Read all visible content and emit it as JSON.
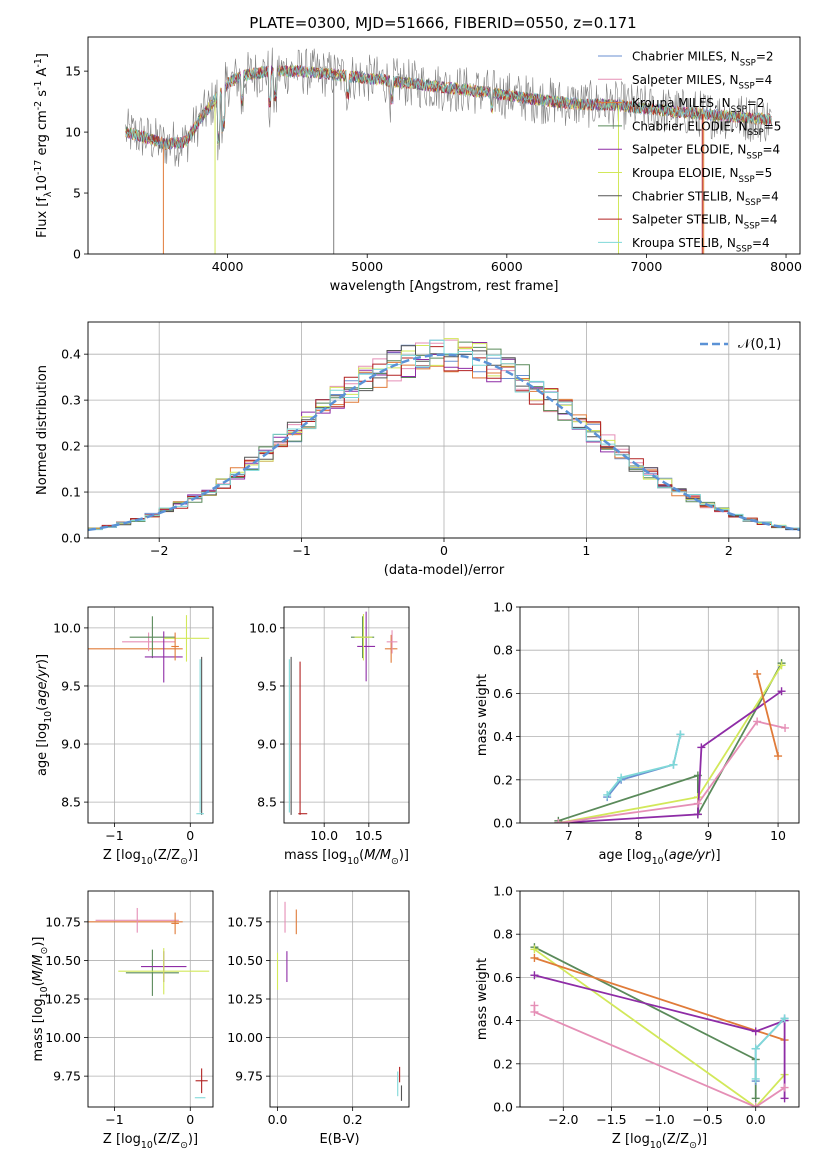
{
  "figure": {
    "title": "PLATE=0300, MJD=51666, FIBERID=0550, z=0.171"
  },
  "colors": {
    "chabrier_miles": "#6a8fd0",
    "salpeter_miles": "#e58fb6",
    "kroupa_miles": "#e07b39",
    "chabrier_elodie": "#5a8a5a",
    "salpeter_elodie": "#8e2ca6",
    "kroupa_elodie": "#d2e85a",
    "chabrier_stelib": "#555555",
    "salpeter_stelib": "#b22222",
    "kroupa_stelib": "#7fd8d8",
    "normal": "#5b92d6",
    "data": "#808080"
  },
  "chart_data": [
    {
      "id": "spectrum",
      "type": "line",
      "xlabel": "wavelength [Angstrom, rest frame]",
      "ylabel": "Flux [f$_\\lambda$10$^{-17}$ erg cm$^{-2}$ s$^{-1}$ A$^{-1}$]",
      "xlim": [
        3000,
        8100
      ],
      "ylim": [
        0,
        17.8
      ],
      "xticks": [
        4000,
        5000,
        6000,
        7000,
        8000
      ],
      "yticks": [
        0,
        5,
        10,
        15
      ],
      "legend_position": "right",
      "series": [
        {
          "name": "Chabrier MILES, N$_{SSP}$=2",
          "key": "chabrier_miles"
        },
        {
          "name": "Salpeter MILES, N$_{SSP}$=4",
          "key": "salpeter_miles"
        },
        {
          "name": "Kroupa MILES, N$_{SSP}$=2",
          "key": "kroupa_miles"
        },
        {
          "name": "Chabrier ELODIE, N$_{SSP}$=5",
          "key": "chabrier_elodie"
        },
        {
          "name": "Salpeter ELODIE, N$_{SSP}$=4",
          "key": "salpeter_elodie"
        },
        {
          "name": "Kroupa ELODIE, N$_{SSP}$=5",
          "key": "kroupa_elodie"
        },
        {
          "name": "Chabrier STELIB, N$_{SSP}$=4",
          "key": "chabrier_stelib"
        },
        {
          "name": "Salpeter STELIB, N$_{SSP}$=4",
          "key": "salpeter_stelib"
        },
        {
          "name": "Kroupa STELIB, N$_{SSP}$=4",
          "key": "kroupa_stelib"
        }
      ],
      "continuum": [
        [
          3270,
          10.0
        ],
        [
          3400,
          9.6
        ],
        [
          3550,
          9.0
        ],
        [
          3700,
          9.2
        ],
        [
          3800,
          11.0
        ],
        [
          3900,
          12.5
        ],
        [
          4000,
          14.0
        ],
        [
          4100,
          14.6
        ],
        [
          4300,
          15.0
        ],
        [
          4500,
          15.0
        ],
        [
          4700,
          14.8
        ],
        [
          5000,
          14.4
        ],
        [
          5300,
          14.0
        ],
        [
          5600,
          13.6
        ],
        [
          5900,
          13.2
        ],
        [
          6200,
          12.7
        ],
        [
          6500,
          12.3
        ],
        [
          6800,
          12.2
        ],
        [
          7000,
          11.9
        ],
        [
          7300,
          11.6
        ],
        [
          7600,
          11.3
        ],
        [
          7900,
          11.0
        ]
      ]
    },
    {
      "id": "residuals",
      "type": "line",
      "xlabel": "(data-model)/error",
      "ylabel": "Normed distribution",
      "xlim": [
        -2.5,
        2.5
      ],
      "ylim": [
        0,
        0.47
      ],
      "xticks": [
        -2,
        -1,
        0,
        1,
        2
      ],
      "yticks": [
        0.0,
        0.1,
        0.2,
        0.3,
        0.4
      ],
      "legend_position": "top-right",
      "legend": "$\\mathcal{N}(0,1)$",
      "normal_mean": 0,
      "normal_sigma": 1
    },
    {
      "id": "age_vs_Z",
      "type": "scatter",
      "xlabel": "Z [log$_{10}$(Z/Z$_\\odot$)]",
      "ylabel": "age  [log$_{10}$($age/yr$)]",
      "xlim": [
        -1.35,
        0.3
      ],
      "ylim": [
        8.32,
        10.18
      ],
      "xticks": [
        -1,
        0
      ],
      "yticks": [
        8.5,
        9.0,
        9.5,
        10.0
      ],
      "points": [
        {
          "key": "kroupa_miles",
          "x": -0.75,
          "y": 9.82,
          "xerr": 0.65,
          "yerr": 0.0
        },
        {
          "key": "salpeter_miles",
          "x": -0.55,
          "y": 9.88,
          "xerr": 0.35,
          "yerr": 0.08
        },
        {
          "key": "chabrier_elodie",
          "x": -0.5,
          "y": 9.92,
          "xerr": 0.3,
          "yerr": 0.18
        },
        {
          "key": "salpeter_elodie",
          "x": -0.35,
          "y": 9.75,
          "xerr": 0.25,
          "yerr": 0.22
        },
        {
          "key": "kroupa_elodie",
          "x": -0.05,
          "y": 9.91,
          "xerr": 0.3,
          "yerr": 0.2
        },
        {
          "key": "kroupa_miles",
          "x": -0.2,
          "y": 9.84,
          "xerr": 0.05,
          "yerr": 0.12
        },
        {
          "key": "chabrier_stelib",
          "x": 0.15,
          "y": 9.07,
          "xerr": 0.0,
          "yerr": 0.68
        },
        {
          "key": "kroupa_stelib",
          "x": 0.13,
          "y": 9.07,
          "xerr": 0.0,
          "yerr": 0.66
        },
        {
          "key": "kroupa_stelib",
          "x": 0.13,
          "y": 8.4,
          "xerr": 0.05,
          "yerr": 0.0
        }
      ]
    },
    {
      "id": "age_vs_mass",
      "type": "scatter",
      "xlabel": "mass [log$_{10}$($M/M_\\odot$)]",
      "ylabel": "",
      "xlim": [
        9.55,
        10.95
      ],
      "ylim": [
        8.32,
        10.18
      ],
      "xticks": [
        10.0,
        10.5
      ],
      "xticklabels": [
        "10.0",
        "10.5"
      ],
      "yticks": [
        8.5,
        9.0,
        9.5,
        10.0
      ],
      "points": [
        {
          "key": "chabrier_elodie",
          "x": 10.43,
          "y": 9.92,
          "xerr": 0.13,
          "yerr": 0.18
        },
        {
          "key": "salpeter_elodie",
          "x": 10.47,
          "y": 9.84,
          "xerr": 0.1,
          "yerr": 0.3
        },
        {
          "key": "kroupa_elodie",
          "x": 10.44,
          "y": 9.92,
          "xerr": 0.1,
          "yerr": 0.2
        },
        {
          "key": "kroupa_miles",
          "x": 10.75,
          "y": 9.82,
          "xerr": 0.07,
          "yerr": 0.12
        },
        {
          "key": "salpeter_miles",
          "x": 10.76,
          "y": 9.88,
          "xerr": 0.06,
          "yerr": 0.1
        },
        {
          "key": "chabrier_stelib",
          "x": 9.63,
          "y": 9.07,
          "xerr": 0.0,
          "yerr": 0.68
        },
        {
          "key": "kroupa_stelib",
          "x": 9.61,
          "y": 9.07,
          "xerr": 0.0,
          "yerr": 0.66
        },
        {
          "key": "salpeter_stelib",
          "x": 9.73,
          "y": 9.05,
          "xerr": 0.0,
          "yerr": 0.66
        },
        {
          "key": "salpeter_stelib",
          "x": 9.76,
          "y": 8.4,
          "xerr": 0.05,
          "yerr": 0.0
        }
      ]
    },
    {
      "id": "weight_vs_age",
      "type": "line",
      "xlabel": "age  [log$_{10}$($age/yr$)]",
      "ylabel": "mass weight",
      "xlim": [
        6.3,
        10.3
      ],
      "ylim": [
        0,
        1.0
      ],
      "xticks": [
        7,
        8,
        9,
        10
      ],
      "yticks": [
        0.0,
        0.2,
        0.4,
        0.6,
        0.8,
        1.0
      ],
      "series": [
        {
          "key": "chabrier_miles",
          "x": [
            7.55,
            7.75,
            8.5,
            8.6
          ],
          "y": [
            0.12,
            0.2,
            0.27,
            0.41
          ]
        },
        {
          "key": "kroupa_stelib",
          "x": [
            7.55,
            7.75,
            8.5,
            8.6
          ],
          "y": [
            0.13,
            0.21,
            0.27,
            0.41
          ]
        },
        {
          "key": "chabrier_elodie",
          "x": [
            6.85,
            8.85,
            8.85,
            10.05
          ],
          "y": [
            0.01,
            0.22,
            0.04,
            0.74
          ]
        },
        {
          "key": "kroupa_elodie",
          "x": [
            6.85,
            8.85,
            10.05
          ],
          "y": [
            0.0,
            0.12,
            0.73
          ]
        },
        {
          "key": "salpeter_elodie",
          "x": [
            6.85,
            8.85,
            8.9,
            10.05
          ],
          "y": [
            0.0,
            0.04,
            0.35,
            0.61
          ]
        },
        {
          "key": "salpeter_miles",
          "x": [
            6.85,
            8.85,
            9.7,
            10.1
          ],
          "y": [
            0.0,
            0.09,
            0.47,
            0.44
          ]
        },
        {
          "key": "kroupa_miles",
          "x": [
            9.7,
            10.0
          ],
          "y": [
            0.69,
            0.31
          ]
        }
      ]
    },
    {
      "id": "mass_vs_Z",
      "type": "scatter",
      "xlabel": "Z [log$_{10}$(Z/Z$_\\odot$)]",
      "ylabel": "mass [log$_{10}$($M/M_\\odot$)]",
      "xlim": [
        -1.35,
        0.3
      ],
      "ylim": [
        9.55,
        10.95
      ],
      "xticks": [
        -1,
        0
      ],
      "yticks": [
        9.75,
        10.0,
        10.25,
        10.5,
        10.75
      ],
      "yticklabels": [
        "9.75",
        "10.00",
        "10.25",
        "10.50",
        "10.75"
      ],
      "points": [
        {
          "key": "kroupa_miles",
          "x": -0.75,
          "y": 10.75,
          "xerr": 0.65,
          "yerr": 0.0
        },
        {
          "key": "salpeter_miles",
          "x": -0.7,
          "y": 10.76,
          "xerr": 0.55,
          "yerr": 0.08
        },
        {
          "key": "chabrier_elodie",
          "x": -0.5,
          "y": 10.42,
          "xerr": 0.35,
          "yerr": 0.15
        },
        {
          "key": "salpeter_elodie",
          "x": -0.35,
          "y": 10.46,
          "xerr": 0.3,
          "yerr": 0.1
        },
        {
          "key": "kroupa_elodie",
          "x": -0.35,
          "y": 10.43,
          "xerr": 0.6,
          "yerr": 0.15
        },
        {
          "key": "kroupa_miles",
          "x": -0.2,
          "y": 10.74,
          "xerr": 0.05,
          "yerr": 0.07
        },
        {
          "key": "salpeter_stelib",
          "x": 0.15,
          "y": 9.72,
          "xerr": 0.08,
          "yerr": 0.08
        },
        {
          "key": "kroupa_stelib",
          "x": 0.13,
          "y": 9.61,
          "xerr": 0.07,
          "yerr": 0.0
        }
      ]
    },
    {
      "id": "mass_vs_ebv",
      "type": "scatter",
      "xlabel": "E(B-V)",
      "ylabel": "",
      "xlim": [
        -0.02,
        0.35
      ],
      "ylim": [
        9.55,
        10.95
      ],
      "xticks": [
        0.0,
        0.2
      ],
      "xticklabels": [
        "0.0",
        "0.2"
      ],
      "yticks": [
        9.75,
        10.0,
        10.25,
        10.5,
        10.75
      ],
      "yticklabels": [
        "9.75",
        "10.00",
        "10.25",
        "10.50",
        "10.75"
      ],
      "points": [
        {
          "key": "salpeter_miles",
          "x": 0.02,
          "y": 10.78,
          "xerr": 0.0,
          "yerr": 0.1
        },
        {
          "key": "kroupa_miles",
          "x": 0.05,
          "y": 10.75,
          "xerr": 0.0,
          "yerr": 0.08
        },
        {
          "key": "salpeter_elodie",
          "x": 0.025,
          "y": 10.46,
          "xerr": 0.0,
          "yerr": 0.1
        },
        {
          "key": "kroupa_elodie",
          "x": 0.0,
          "y": 10.43,
          "xerr": 0.0,
          "yerr": 0.12
        },
        {
          "key": "kroupa_stelib",
          "x": 0.32,
          "y": 9.7,
          "xerr": 0.0,
          "yerr": 0.08
        },
        {
          "key": "salpeter_stelib",
          "x": 0.325,
          "y": 9.76,
          "xerr": 0.0,
          "yerr": 0.05
        },
        {
          "key": "chabrier_stelib",
          "x": 0.33,
          "y": 9.64,
          "xerr": 0.0,
          "yerr": 0.05
        }
      ]
    },
    {
      "id": "weight_vs_Z",
      "type": "line",
      "xlabel": "Z [log$_{10}$(Z/Z$_\\odot$)]",
      "ylabel": "mass weight",
      "xlim": [
        -2.45,
        0.45
      ],
      "ylim": [
        0,
        1.0
      ],
      "xticks": [
        -2.0,
        -1.5,
        -1.0,
        -0.5,
        0.0
      ],
      "xticklabels": [
        "-2.0",
        "-1.5",
        "-1.0",
        "-0.5",
        "0.0"
      ],
      "yticks": [
        0.0,
        0.2,
        0.4,
        0.6,
        0.8,
        1.0
      ],
      "series": [
        {
          "key": "chabrier_elodie",
          "x": [
            -2.3,
            0.0,
            0.0
          ],
          "y": [
            0.74,
            0.22,
            0.04
          ]
        },
        {
          "key": "kroupa_elodie",
          "x": [
            -2.3,
            0.0,
            0.3
          ],
          "y": [
            0.73,
            0.0,
            0.15
          ]
        },
        {
          "key": "kroupa_miles",
          "x": [
            -2.3,
            0.3
          ],
          "y": [
            0.69,
            0.31
          ]
        },
        {
          "key": "salpeter_elodie",
          "x": [
            -2.3,
            0.0,
            0.3,
            0.3
          ],
          "y": [
            0.61,
            0.35,
            0.4,
            0.04
          ]
        },
        {
          "key": "salpeter_miles",
          "x": [
            -2.3,
            -2.3,
            0.0,
            0.3
          ],
          "y": [
            0.47,
            0.44,
            0.0,
            0.09
          ]
        },
        {
          "key": "chabrier_miles",
          "x": [
            0.0,
            0.0,
            0.3
          ],
          "y": [
            0.12,
            0.27,
            0.41
          ]
        },
        {
          "key": "kroupa_stelib",
          "x": [
            0.0,
            0.0,
            0.3
          ],
          "y": [
            0.13,
            0.27,
            0.41
          ]
        }
      ]
    }
  ]
}
